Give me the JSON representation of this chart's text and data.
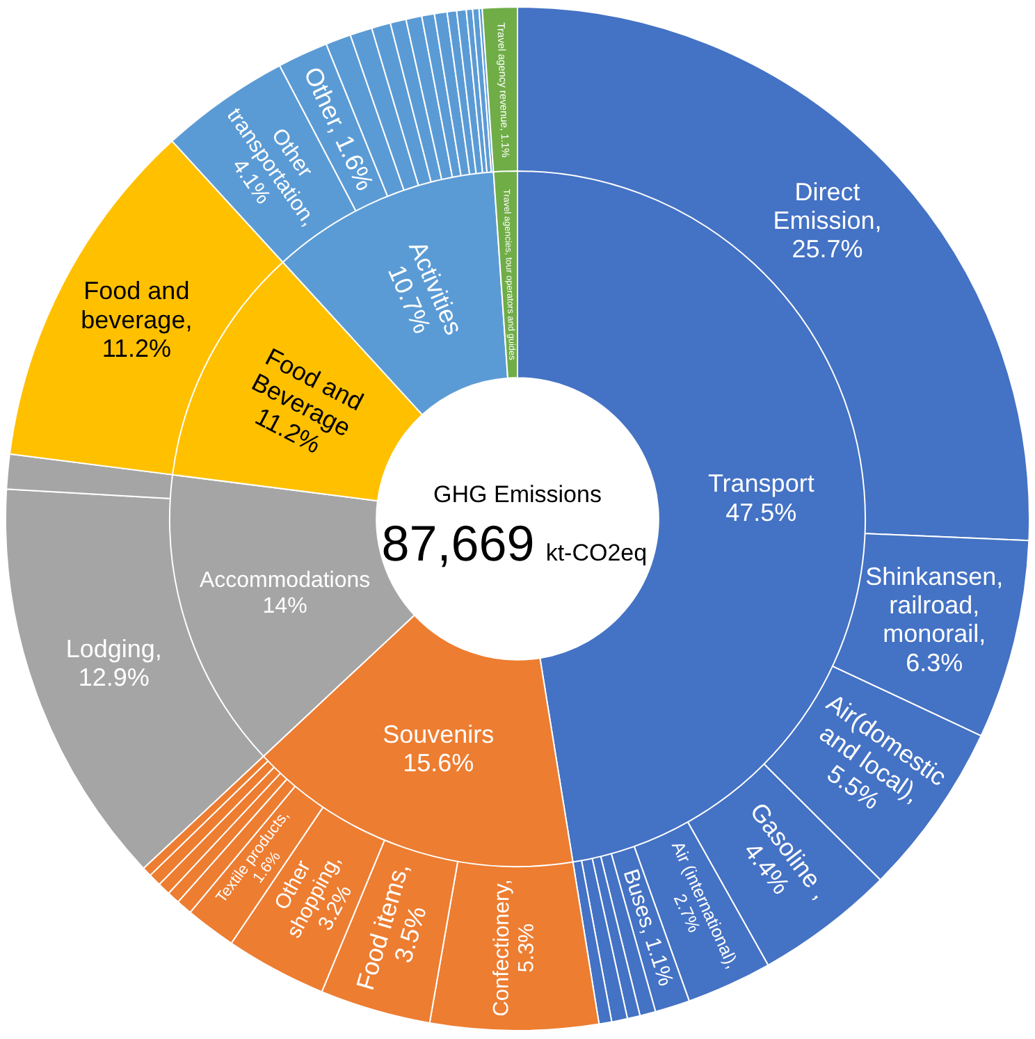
{
  "chart_data": [
    {
      "type": "donut",
      "title": "GHG Emissions",
      "subtitle": "87,669 kt-CO2eq",
      "categories": [
        "Transport",
        "Souvenirs",
        "Accommodations",
        "Food and Beverage",
        "Activities",
        "Travel agencies, tour operators and guides"
      ],
      "values": [
        47.5,
        15.6,
        14,
        11.2,
        10.7,
        1.1
      ],
      "value_labels": [
        "47.5%",
        "15.6%",
        "14%",
        "11.2%",
        "10.7%",
        null
      ],
      "colors": [
        "#4472c4",
        "#ed7d31",
        "#a5a5a5",
        "#ffc000",
        "#5b9bd5",
        "#70ad47"
      ],
      "legend": false
    },
    {
      "type": "donut",
      "categories": [
        "Direct Emission, 25.7%",
        "Shinkansen, railroad, monorail, 6.3%",
        "Air(domestic and local), 5.5%",
        "Gasoline , 4.4%",
        "Air (international), 2.7%",
        "Buses, 1.1%",
        null,
        null,
        null,
        null,
        "Confectionery, 5.3%",
        "Food items, 3.5%",
        "Other shopping, 3.2%",
        "Textile products, 1.6%",
        null,
        null,
        null,
        null,
        null,
        "Lodging, 12.9%",
        null,
        "Food and beverage, 11.2%",
        "Other transportation, 4.1%",
        "Other, 1.6%",
        null,
        null,
        null,
        null,
        null,
        null,
        null,
        null,
        null,
        null,
        null,
        null,
        "Travel agency revenue, 1.1%"
      ],
      "values": [
        25.7,
        6.3,
        5.5,
        4.4,
        2.7,
        1.1,
        0.5,
        0.4,
        0.5,
        0.4,
        5.3,
        3.5,
        3.2,
        1.6,
        0.5,
        0.4,
        0.4,
        0.4,
        0.3,
        12.9,
        1.1,
        11.2,
        4.1,
        1.6,
        0.8,
        0.7,
        0.6,
        0.5,
        0.5,
        0.4,
        0.4,
        0.3,
        0.3,
        0.2,
        0.2,
        0.1,
        1.1
      ],
      "colors": [
        "#4472c4",
        "#4472c4",
        "#4472c4",
        "#4472c4",
        "#4472c4",
        "#4472c4",
        "#4472c4",
        "#4472c4",
        "#4472c4",
        "#4472c4",
        "#ed7d31",
        "#ed7d31",
        "#ed7d31",
        "#ed7d31",
        "#ed7d31",
        "#ed7d31",
        "#ed7d31",
        "#ed7d31",
        "#ed7d31",
        "#a5a5a5",
        "#a5a5a5",
        "#ffc000",
        "#5b9bd5",
        "#5b9bd5",
        "#5b9bd5",
        "#5b9bd5",
        "#5b9bd5",
        "#5b9bd5",
        "#5b9bd5",
        "#5b9bd5",
        "#5b9bd5",
        "#5b9bd5",
        "#5b9bd5",
        "#5b9bd5",
        "#5b9bd5",
        "#5b9bd5",
        "#70ad47"
      ],
      "legend": false
    }
  ]
}
